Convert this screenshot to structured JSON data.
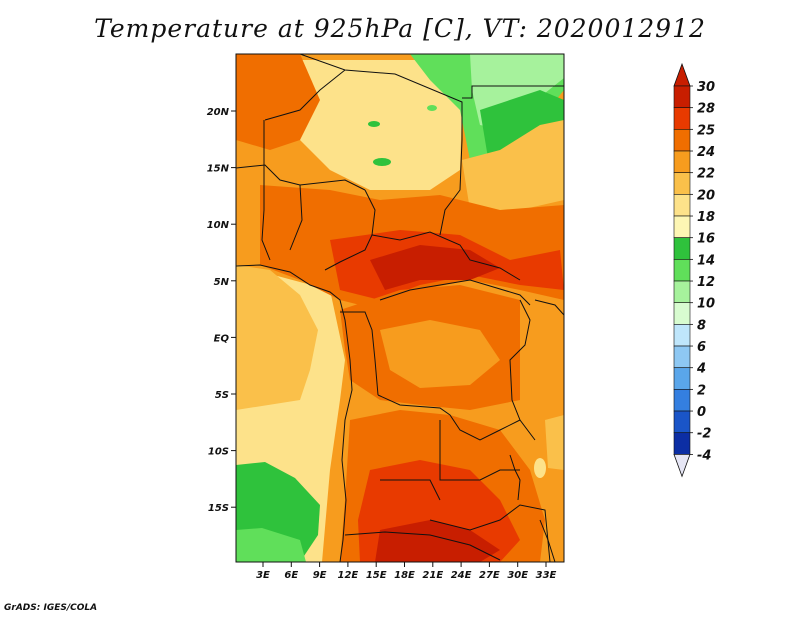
{
  "title": "Temperature at 925hPa [C], VT: 2020012912",
  "credit": "GrADS: IGES/COLA",
  "map": {
    "variable": "Temperature at 925hPa",
    "unit": "C",
    "valid_time": "2020012912",
    "lon_range": [
      0,
      35
    ],
    "lat_range": [
      -20,
      24
    ],
    "lon_ticks": [
      "3E",
      "6E",
      "9E",
      "12E",
      "15E",
      "18E",
      "21E",
      "24E",
      "27E",
      "30E",
      "33E"
    ],
    "lat_ticks": [
      "20N",
      "15N",
      "10N",
      "5N",
      "EQ",
      "5S",
      "10S",
      "15S"
    ]
  },
  "colorbar": {
    "labels": [
      "30",
      "28",
      "25",
      "24",
      "22",
      "20",
      "18",
      "16",
      "14",
      "12",
      "10",
      "8",
      "6",
      "4",
      "2",
      "0",
      "-2",
      "-4"
    ],
    "colors": [
      "#c81e00",
      "#e83a00",
      "#f06e00",
      "#f79c1e",
      "#fac04a",
      "#fde28a",
      "#fdf6b4",
      "#2fc23c",
      "#60df5a",
      "#a6f29c",
      "#d8fcd0",
      "#bfe6fb",
      "#8ec8f3",
      "#5aa6ea",
      "#347fe0",
      "#1a55c8",
      "#0c2ea4",
      "#0a0a6e"
    ],
    "top_color": "#c81e00",
    "bottom_color": "#e6e6f5"
  },
  "fill_colors": {
    "c30": "#c81e00",
    "c28": "#e83a00",
    "c25": "#f06e00",
    "c24": "#f79c1e",
    "c22": "#fac04a",
    "c20": "#fde28a",
    "c18": "#fdf6b4",
    "c16": "#2fc23c",
    "c14": "#60df5a",
    "c12": "#a6f29c"
  }
}
